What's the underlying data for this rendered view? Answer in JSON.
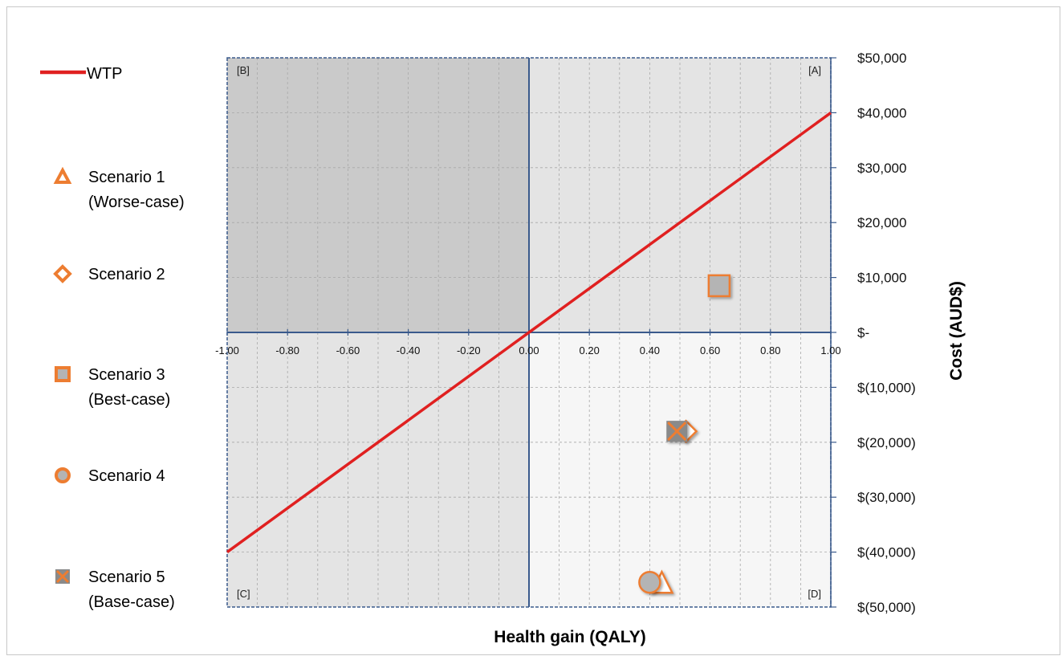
{
  "chart_data": {
    "type": "scatter",
    "xlabel": "Health gain (QALY)",
    "ylabel": "Cost (AUD$)",
    "xlim": [
      -1,
      1
    ],
    "ylim": [
      -50000,
      50000
    ],
    "x_ticks": [
      "-1.00",
      "-0.80",
      "-0.60",
      "-0.40",
      "-0.20",
      "0.00",
      "0.20",
      "0.40",
      "0.60",
      "0.80",
      "1.00"
    ],
    "y_ticks": [
      "$50,000",
      "$40,000",
      "$30,000",
      "$20,000",
      "$10,000",
      "$-",
      "$(10,000)",
      "$(20,000)",
      "$(30,000)",
      "$(40,000)",
      "$(50,000)"
    ],
    "grid": true,
    "legend_position": "left",
    "quadrants": [
      "[A]",
      "[B]",
      "[C]",
      "[D]"
    ],
    "wtp": {
      "name": "WTP",
      "slope_per_qaly": 40000,
      "color": "#e02020"
    },
    "series": [
      {
        "name": "Scenario 1",
        "name2": "(Worse-case)",
        "marker": "triangle",
        "x": 0.44,
        "y": -45500
      },
      {
        "name": "Scenario 2",
        "marker": "diamond",
        "x": 0.52,
        "y": -18000
      },
      {
        "name": "Scenario 3",
        "name2": "(Best-case)",
        "marker": "square",
        "x": 0.63,
        "y": 8500
      },
      {
        "name": "Scenario 4",
        "marker": "circle",
        "x": 0.4,
        "y": -45500
      },
      {
        "name": "Scenario 5",
        "name2": "(Base-case)",
        "marker": "x-square",
        "x": 0.49,
        "y": -18000
      }
    ],
    "colors": {
      "marker_stroke": "#ed7d31",
      "marker_fill": "#b4b4b4",
      "quad_b": "#cacaca",
      "quad_a": "#e4e4e4",
      "quad_c": "#e4e4e4",
      "quad_d": "#f6f6f6",
      "axis": "#3a5a8c"
    }
  }
}
